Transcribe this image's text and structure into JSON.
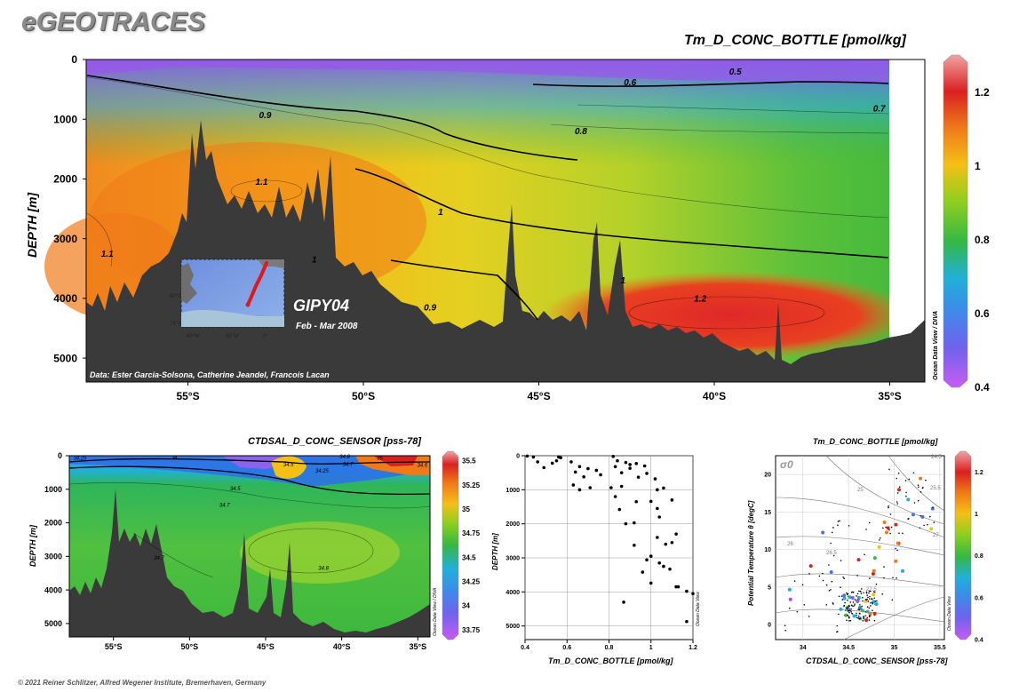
{
  "brand": "eGEOTRACES",
  "copyright": "© 2021 Reiner Schlitzer, Alfred Wegener Institute, Bremerhaven, Germany",
  "colors": {
    "deep_red": "#d92020",
    "orange": "#f07a18",
    "yellow": "#f5c016",
    "green": "#3db83d",
    "cyan": "#1faee0",
    "blue": "#4a6ee8",
    "violet": "#a54ef0",
    "terrain": "#3a3a3a"
  },
  "chart_data": [
    {
      "type": "heatmap",
      "id": "main-section",
      "title": "Tm_D_CONC_BOTTLE [pmol/kg]",
      "ylabel": "DEPTH [m]",
      "xlabel": "",
      "x_ticks": [
        "55°S",
        "50°S",
        "45°S",
        "40°S",
        "35°S"
      ],
      "x_tick_values": [
        -55,
        -50,
        -45,
        -40,
        -35
      ],
      "xlim": [
        -57.9,
        -34.0
      ],
      "y_ticks": [
        "0",
        "1000",
        "2000",
        "3000",
        "4000",
        "5000"
      ],
      "y_tick_values": [
        0,
        1000,
        2000,
        3000,
        4000,
        5000
      ],
      "ylim": [
        0,
        5400
      ],
      "colorbar": {
        "ticks": [
          "1.2",
          "1",
          "0.8",
          "0.6",
          "0.4"
        ],
        "values": [
          1.2,
          1.0,
          0.8,
          0.6,
          0.4
        ],
        "range": [
          0.4,
          1.3
        ]
      },
      "contour_labels": [
        {
          "text": "0.5",
          "x": -39.4,
          "y": 250
        },
        {
          "text": "0.6",
          "x": -42.4,
          "y": 430
        },
        {
          "text": "0.7",
          "x": -35.3,
          "y": 870
        },
        {
          "text": "0.9",
          "x": -52.8,
          "y": 980
        },
        {
          "text": "0.8",
          "x": -43.8,
          "y": 1250
        },
        {
          "text": "1.1",
          "x": -52.9,
          "y": 2100
        },
        {
          "text": "1",
          "x": -47.8,
          "y": 2600
        },
        {
          "text": "1.1",
          "x": -57.3,
          "y": 3300
        },
        {
          "text": "1",
          "x": -51.4,
          "y": 3400
        },
        {
          "text": "1",
          "x": -42.6,
          "y": 3750
        },
        {
          "text": "0.9",
          "x": -48.1,
          "y": 4200
        },
        {
          "text": "1.2",
          "x": -40.4,
          "y": 4050
        }
      ],
      "inset": {
        "label": "GIPY04",
        "date": "Feb - Mar 2008",
        "axis_labels": [
          "60°W",
          "30°W",
          "0°",
          "60°S",
          "75°S"
        ]
      },
      "credit": "Data: Ester Garcia-Solsona, Catherine Jeandel, Francois Lacan",
      "side_label": "Ocean Data View / DIVA"
    },
    {
      "type": "heatmap",
      "id": "salinity-section",
      "title": "CTDSAL_D_CONC_SENSOR [pss-78]",
      "ylabel": "DEPTH [m]",
      "xlabel": "",
      "x_ticks": [
        "55°S",
        "50°S",
        "45°S",
        "40°S",
        "35°S"
      ],
      "x_tick_values": [
        -55,
        -50,
        -45,
        -40,
        -35
      ],
      "xlim": [
        -57.9,
        -34.2
      ],
      "y_ticks": [
        "0",
        "1000",
        "2000",
        "3000",
        "4000",
        "5000"
      ],
      "y_tick_values": [
        0,
        1000,
        2000,
        3000,
        4000,
        5000
      ],
      "ylim": [
        0,
        5400
      ],
      "colorbar": {
        "ticks": [
          "35.5",
          "35.25",
          "35",
          "34.75",
          "34.5",
          "34.25",
          "34",
          "33.75"
        ],
        "values": [
          35.5,
          35.25,
          35.0,
          34.75,
          34.5,
          34.25,
          34.0,
          33.75
        ],
        "range": [
          33.65,
          35.6
        ]
      },
      "contour_labels": [
        {
          "text": "34.25",
          "x": -57.2,
          "y": 120
        },
        {
          "text": "34",
          "x": -51.0,
          "y": 100
        },
        {
          "text": "34.5",
          "x": -43.5,
          "y": 320
        },
        {
          "text": "34.8",
          "x": -39.8,
          "y": 80
        },
        {
          "text": "34.7",
          "x": -39.6,
          "y": 300
        },
        {
          "text": "35",
          "x": -37.5,
          "y": 120
        },
        {
          "text": "34.5",
          "x": -47.0,
          "y": 1030
        },
        {
          "text": "34.7",
          "x": -47.7,
          "y": 1520
        },
        {
          "text": "34.7",
          "x": -52.0,
          "y": 3100
        },
        {
          "text": "34.8",
          "x": -41.2,
          "y": 3400
        },
        {
          "text": "34.25",
          "x": -41.3,
          "y": 500
        },
        {
          "text": "34.6",
          "x": -34.7,
          "y": 330
        }
      ],
      "side_label": "Ocean Data View / DIVA"
    },
    {
      "type": "scatter",
      "id": "profile",
      "title": "",
      "xlabel": "Tm_D_CONC_BOTTLE [pmol/kg]",
      "ylabel": "DEPTH [m]",
      "x_ticks": [
        "0.4",
        "0.6",
        "0.8",
        "1",
        "1.2"
      ],
      "x_tick_values": [
        0.4,
        0.6,
        0.8,
        1.0,
        1.2
      ],
      "xlim": [
        0.4,
        1.2
      ],
      "y_ticks": [
        "0",
        "1000",
        "2000",
        "3000",
        "4000",
        "5000"
      ],
      "y_tick_values": [
        0,
        1000,
        2000,
        3000,
        4000,
        5000
      ],
      "ylim": [
        0,
        5400
      ],
      "side_label": "Ocean Data View",
      "points": [
        [
          0.41,
          10
        ],
        [
          0.44,
          40
        ],
        [
          0.46,
          180
        ],
        [
          0.53,
          220
        ],
        [
          0.56,
          40
        ],
        [
          0.55,
          150
        ],
        [
          0.57,
          60
        ],
        [
          0.49,
          350
        ],
        [
          0.62,
          180
        ],
        [
          0.66,
          320
        ],
        [
          0.64,
          480
        ],
        [
          0.7,
          380
        ],
        [
          0.68,
          620
        ],
        [
          0.74,
          430
        ],
        [
          0.76,
          560
        ],
        [
          0.63,
          860
        ],
        [
          0.66,
          1000
        ],
        [
          0.71,
          940
        ],
        [
          0.82,
          20
        ],
        [
          0.84,
          150
        ],
        [
          0.83,
          320
        ],
        [
          0.88,
          200
        ],
        [
          0.9,
          260
        ],
        [
          0.93,
          230
        ],
        [
          0.86,
          500
        ],
        [
          0.9,
          370
        ],
        [
          0.94,
          630
        ],
        [
          0.97,
          300
        ],
        [
          0.98,
          520
        ],
        [
          1.02,
          680
        ],
        [
          0.81,
          940
        ],
        [
          0.86,
          900
        ],
        [
          1.03,
          1000
        ],
        [
          1.06,
          950
        ],
        [
          0.83,
          1200
        ],
        [
          0.85,
          1580
        ],
        [
          0.93,
          1350
        ],
        [
          1.0,
          1340
        ],
        [
          1.03,
          1550
        ],
        [
          0.88,
          2000
        ],
        [
          0.92,
          1970
        ],
        [
          1.04,
          1800
        ],
        [
          1.1,
          1300
        ],
        [
          0.92,
          2630
        ],
        [
          1.03,
          2400
        ],
        [
          1.1,
          2550
        ],
        [
          1.12,
          2300
        ],
        [
          0.98,
          3060
        ],
        [
          1.0,
          2950
        ],
        [
          1.04,
          3150
        ],
        [
          1.06,
          3250
        ],
        [
          1.07,
          2600
        ],
        [
          0.96,
          3420
        ],
        [
          1.09,
          3330
        ],
        [
          1.12,
          3850
        ],
        [
          1.13,
          3850
        ],
        [
          1.0,
          3740
        ],
        [
          1.17,
          3980
        ],
        [
          1.2,
          4050
        ],
        [
          0.87,
          4300
        ],
        [
          1.17,
          4870
        ]
      ]
    },
    {
      "type": "scatter",
      "id": "ts-diagram",
      "title": "Tm_D_CONC_BOTTLE [pmol/kg]",
      "xlabel": "CTDSAL_D_CONC_SENSOR [pss-78]",
      "ylabel": "Potential Temperature θ [degC]",
      "x_ticks": [
        "34",
        "34.5",
        "35",
        "35.5"
      ],
      "x_tick_values": [
        34.0,
        34.5,
        35.0,
        35.5
      ],
      "xlim": [
        33.7,
        35.55
      ],
      "y_ticks": [
        "0",
        "5",
        "10",
        "15",
        "20"
      ],
      "y_tick_values": [
        0,
        5,
        10,
        15,
        20
      ],
      "ylim": [
        -2,
        22.5
      ],
      "sigma_label": "σ0",
      "isopycnal_labels": [
        "24.5",
        "25",
        "25.5",
        "26",
        "26.5",
        "27",
        "27.5"
      ],
      "colorbar": {
        "ticks": [
          "1.2",
          "1",
          "0.8",
          "0.6",
          "0.4"
        ],
        "values": [
          1.2,
          1.0,
          0.8,
          0.6,
          0.4
        ],
        "range": [
          0.4,
          1.3
        ]
      },
      "side_label": "Ocean Data View"
    }
  ]
}
